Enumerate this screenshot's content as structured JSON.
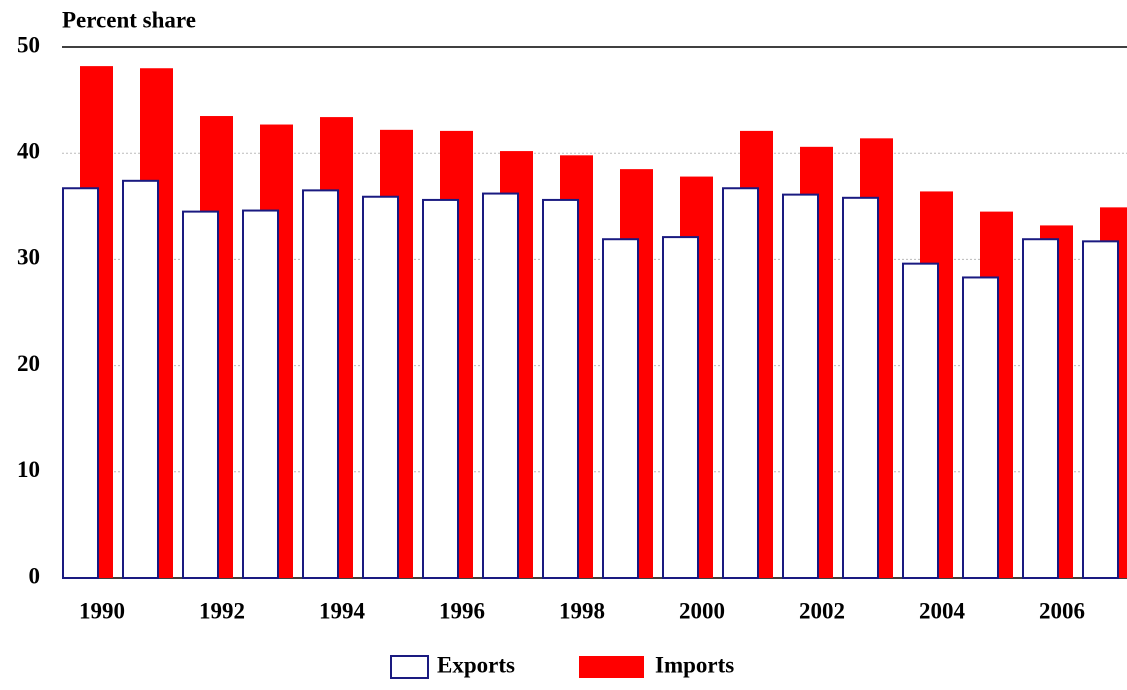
{
  "chart_data": {
    "type": "bar",
    "title": "Percent share",
    "categories": [
      "1990",
      null,
      "1992",
      null,
      "1994",
      null,
      "1996",
      null,
      "1998",
      null,
      "2000",
      null,
      "2002",
      null,
      "2004",
      null,
      "2006",
      null
    ],
    "series": [
      {
        "name": "Exports",
        "color": "#ffffff",
        "stroke": "#1a1a80",
        "values": [
          36.7,
          37.4,
          34.5,
          34.6,
          36.5,
          35.9,
          35.6,
          36.2,
          35.6,
          31.9,
          32.1,
          36.7,
          36.1,
          35.8,
          29.6,
          28.3,
          31.9,
          31.7
        ]
      },
      {
        "name": "Imports",
        "color": "#ff0000",
        "values": [
          48.2,
          48.0,
          43.5,
          42.7,
          43.4,
          42.2,
          42.1,
          40.2,
          39.8,
          38.5,
          37.8,
          42.1,
          40.6,
          41.4,
          36.4,
          34.5,
          33.2,
          34.9
        ]
      }
    ],
    "ylim": [
      0,
      50
    ],
    "yticks": [
      0,
      10,
      20,
      30,
      40,
      50
    ],
    "grid": true,
    "legend": "bottom"
  }
}
